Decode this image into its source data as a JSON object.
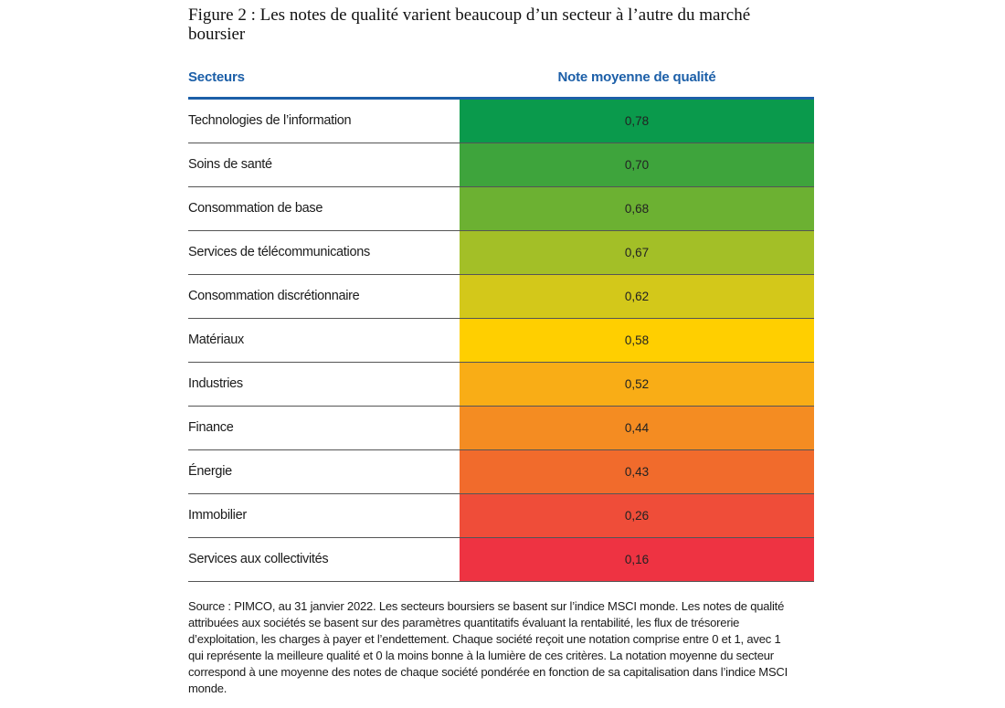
{
  "title": "Figure 2 : Les notes de qualité varient beaucoup d’un secteur à l’autre du marché boursier",
  "headers": {
    "sector": "Secteurs",
    "score": "Note moyenne de qualité"
  },
  "colors": {
    "header": "#1c5fa8",
    "gradient_top": "#0a9a4c",
    "gradient_mid": "#ffcf00",
    "gradient_bottom": "#ee3342"
  },
  "chart_data": {
    "type": "table",
    "title": "Figure 2 : Les notes de qualité varient beaucoup d’un secteur à l’autre du marché boursier",
    "columns": [
      "Secteurs",
      "Note moyenne de qualité"
    ],
    "rows": [
      {
        "sector": "Technologies de l’information",
        "score": 0.78,
        "label": "0,78",
        "color": "#0a9a4c"
      },
      {
        "sector": "Soins de santé",
        "score": 0.7,
        "label": "0,70",
        "color": "#3ea43c"
      },
      {
        "sector": "Consommation de base",
        "score": 0.68,
        "label": "0,68",
        "color": "#6cb132"
      },
      {
        "sector": "Services de télécommunications",
        "score": 0.67,
        "label": "0,67",
        "color": "#a3bf27"
      },
      {
        "sector": "Consommation discrétionnaire",
        "score": 0.62,
        "label": "0,62",
        "color": "#d3c81a"
      },
      {
        "sector": "Matériaux",
        "score": 0.58,
        "label": "0,58",
        "color": "#ffcf00"
      },
      {
        "sector": "Industries",
        "score": 0.52,
        "label": "0,52",
        "color": "#f9ad16"
      },
      {
        "sector": "Finance",
        "score": 0.44,
        "label": "0,44",
        "color": "#f48c22"
      },
      {
        "sector": "Énergie",
        "score": 0.43,
        "label": "0,43",
        "color": "#f16b2c"
      },
      {
        "sector": "Immobilier",
        "score": 0.26,
        "label": "0,26",
        "color": "#ef4d39"
      },
      {
        "sector": "Services aux collectivités",
        "score": 0.16,
        "label": "0,16",
        "color": "#ee3342"
      }
    ]
  },
  "source": "Source : PIMCO, au 31 janvier 2022. Les secteurs boursiers se basent sur l’indice MSCI monde. Les notes de qualité attribuées aux sociétés se basent sur des paramètres quantitatifs évaluant la rentabilité, les flux de trésorerie d’exploitation, les charges à payer et l’endettement. Chaque société reçoit une notation comprise entre 0 et 1, avec 1 qui représente la meilleure qualité et 0 la moins bonne à la lumière de ces critères. La notation moyenne du secteur correspond à une moyenne des notes de chaque société pondérée en fonction de sa capitalisation dans l’indice MSCI monde."
}
